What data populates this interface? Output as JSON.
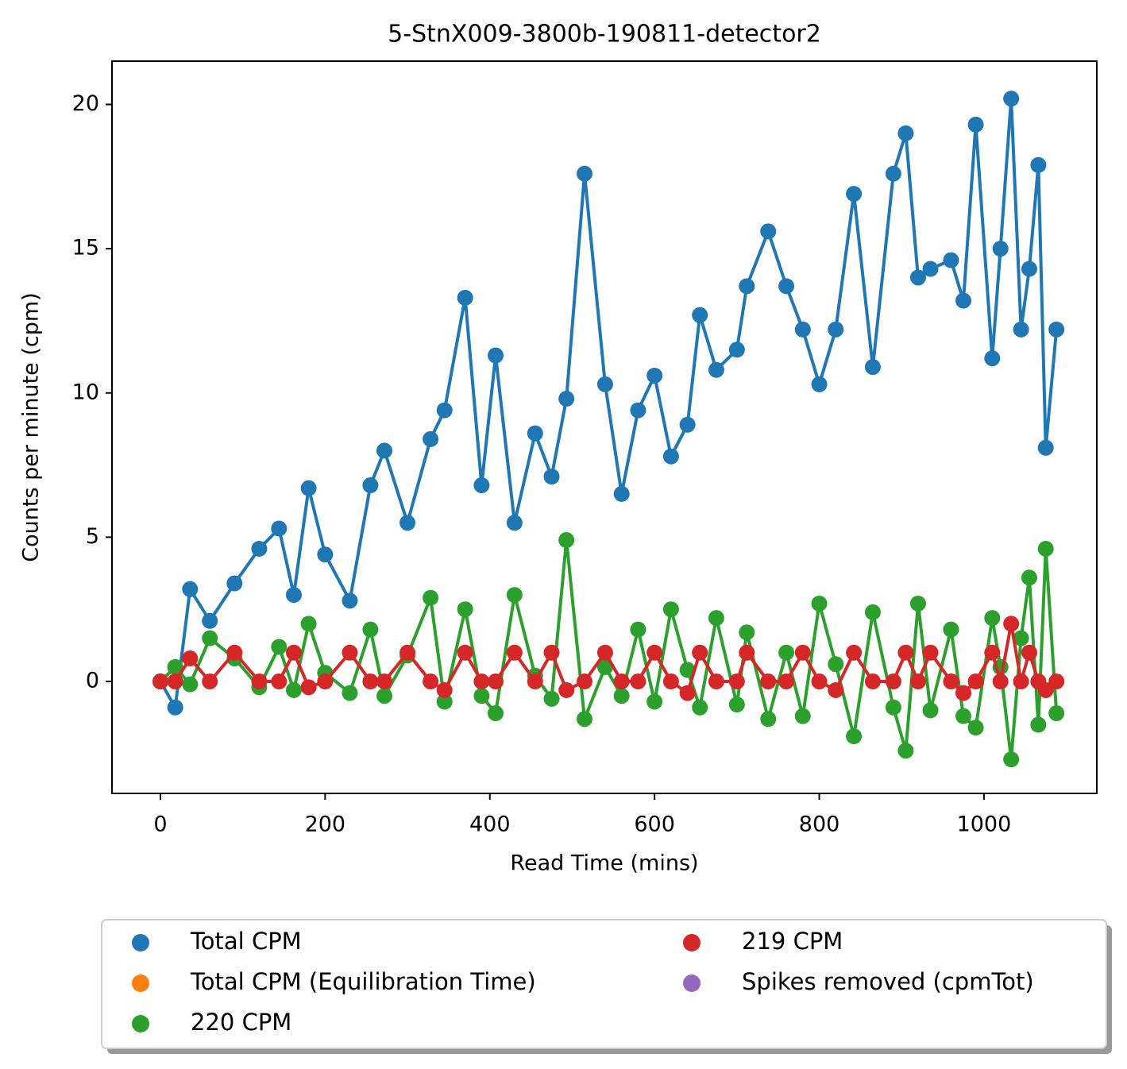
{
  "chart_data": {
    "type": "line",
    "title": "5-StnX009-3800b-190811-detector2",
    "x_label": "Read Time (mins)",
    "y_label": "Counts per minute (cpm)",
    "xlim": [
      -58.8,
      1137
    ],
    "ylim": [
      -3.88,
      21.5
    ],
    "xticks": [
      0,
      200,
      400,
      600,
      800,
      1000
    ],
    "yticks": [
      0,
      5,
      10,
      15,
      20
    ],
    "legend": "below",
    "series": [
      {
        "name": "Total CPM",
        "color": "#1f77b4",
        "x": [
          0,
          18,
          36,
          60,
          90,
          120,
          144,
          162,
          180,
          200,
          230,
          255,
          272,
          300,
          328,
          345,
          370,
          390,
          407,
          430,
          455,
          475,
          493,
          515,
          540,
          560,
          580,
          600,
          620,
          640,
          655,
          675,
          700,
          712,
          738,
          760,
          780,
          800,
          820,
          842,
          865,
          890,
          905,
          920,
          935,
          960,
          975,
          990,
          1010,
          1020,
          1033,
          1045,
          1055,
          1066,
          1075,
          1088
        ],
        "values": [
          0,
          -0.9,
          3.2,
          2.1,
          3.4,
          4.6,
          5.3,
          3.0,
          6.7,
          4.4,
          2.8,
          6.8,
          8.0,
          5.5,
          8.4,
          9.4,
          13.3,
          6.8,
          11.3,
          5.5,
          8.6,
          7.1,
          9.8,
          17.6,
          10.3,
          6.5,
          9.4,
          10.6,
          7.8,
          8.9,
          12.7,
          10.8,
          11.5,
          13.7,
          15.6,
          13.7,
          12.2,
          10.3,
          12.2,
          16.9,
          10.9,
          17.6,
          19.0,
          14.0,
          14.3,
          14.6,
          13.2,
          19.3,
          11.2,
          15.0,
          20.2,
          12.2,
          14.3,
          17.9,
          8.1,
          12.2
        ]
      },
      {
        "name": "Total CPM (Equilibration Time)",
        "color": "#ff7f0e",
        "x": [],
        "values": []
      },
      {
        "name": "220 CPM",
        "color": "#2ca02c",
        "x": [
          0,
          18,
          36,
          60,
          90,
          120,
          144,
          162,
          180,
          200,
          230,
          255,
          272,
          300,
          328,
          345,
          370,
          390,
          407,
          430,
          455,
          475,
          493,
          515,
          540,
          560,
          580,
          600,
          620,
          640,
          655,
          675,
          700,
          712,
          738,
          760,
          780,
          800,
          820,
          842,
          865,
          890,
          905,
          920,
          935,
          960,
          975,
          990,
          1010,
          1020,
          1033,
          1045,
          1055,
          1066,
          1075,
          1088
        ],
        "values": [
          0,
          0.5,
          -0.1,
          1.5,
          0.8,
          -0.2,
          1.2,
          -0.3,
          2.0,
          0.3,
          -0.4,
          1.8,
          -0.5,
          0.9,
          2.9,
          -0.7,
          2.5,
          -0.5,
          -1.1,
          3.0,
          0.2,
          -0.6,
          4.9,
          -1.3,
          0.5,
          -0.5,
          1.8,
          -0.7,
          2.5,
          0.4,
          -0.9,
          2.2,
          -0.8,
          1.7,
          -1.3,
          1.0,
          -1.2,
          2.7,
          0.6,
          -1.9,
          2.4,
          -0.9,
          -2.4,
          2.7,
          -1.0,
          1.8,
          -1.2,
          -1.6,
          2.2,
          0.5,
          -2.7,
          1.5,
          3.6,
          -1.5,
          4.6,
          -1.1
        ]
      },
      {
        "name": "219 CPM",
        "color": "#d62728",
        "x": [
          0,
          18,
          36,
          60,
          90,
          120,
          144,
          162,
          180,
          200,
          230,
          255,
          272,
          300,
          328,
          345,
          370,
          390,
          407,
          430,
          455,
          475,
          493,
          515,
          540,
          560,
          580,
          600,
          620,
          640,
          655,
          675,
          700,
          712,
          738,
          760,
          780,
          800,
          820,
          842,
          865,
          890,
          905,
          920,
          935,
          960,
          975,
          990,
          1010,
          1020,
          1033,
          1045,
          1055,
          1066,
          1075,
          1088
        ],
        "values": [
          0,
          0,
          0.8,
          0,
          1,
          0,
          0,
          1,
          -0.2,
          0,
          1,
          0,
          0,
          1,
          0,
          -0.3,
          1,
          0,
          0,
          1,
          0,
          1,
          -0.3,
          0,
          1,
          0,
          0,
          1,
          0,
          -0.4,
          1,
          0,
          0,
          1,
          0,
          0,
          1,
          0,
          -0.3,
          1,
          0,
          0,
          1,
          0,
          1,
          0,
          -0.4,
          0,
          1,
          0,
          2,
          0,
          1,
          0,
          -0.3,
          0
        ]
      },
      {
        "name": "Spikes removed (cpmTot)",
        "color": "#9467bd",
        "x": [],
        "values": []
      }
    ]
  }
}
